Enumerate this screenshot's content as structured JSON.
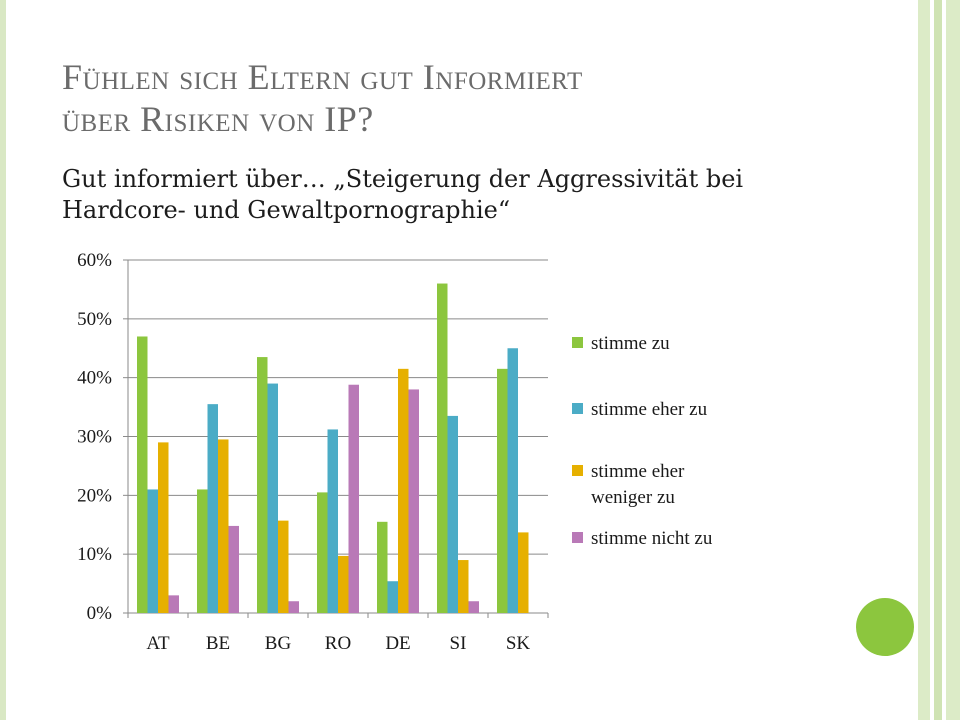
{
  "slide": {
    "title_line1": "Fühlen sich Eltern gut Informiert",
    "title_line2": "über Risiken von IP?",
    "subtitle_line1": "Gut informiert über… „Steigerung der Aggressivität bei",
    "subtitle_line2": "Hardcore- und Gewaltpornographie“"
  },
  "chart_data": {
    "type": "bar",
    "categories": [
      "AT",
      "BE",
      "BG",
      "RO",
      "DE",
      "SI",
      "SK"
    ],
    "ylim": [
      0,
      0.6
    ],
    "yticks": [
      "0%",
      "10%",
      "20%",
      "30%",
      "40%",
      "50%",
      "60%"
    ],
    "grid": true,
    "legend_position": "right",
    "series": [
      {
        "name": "stimme zu",
        "color": "#8cc63e",
        "values": [
          0.47,
          0.21,
          0.435,
          0.205,
          0.155,
          0.56,
          0.415
        ]
      },
      {
        "name": "stimme eher zu",
        "color": "#4bacc6",
        "values": [
          0.21,
          0.355,
          0.39,
          0.312,
          0.054,
          0.335,
          0.45
        ]
      },
      {
        "name": "stimme eher weniger zu",
        "legend_lines": [
          "stimme eher",
          "weniger zu"
        ],
        "color": "#e6b000",
        "values": [
          0.29,
          0.295,
          0.157,
          0.097,
          0.415,
          0.09,
          0.137
        ]
      },
      {
        "name": "stimme nicht zu",
        "color": "#b979b7",
        "values": [
          0.03,
          0.148,
          0.02,
          0.388,
          0.38,
          0.02,
          0
        ]
      }
    ]
  }
}
